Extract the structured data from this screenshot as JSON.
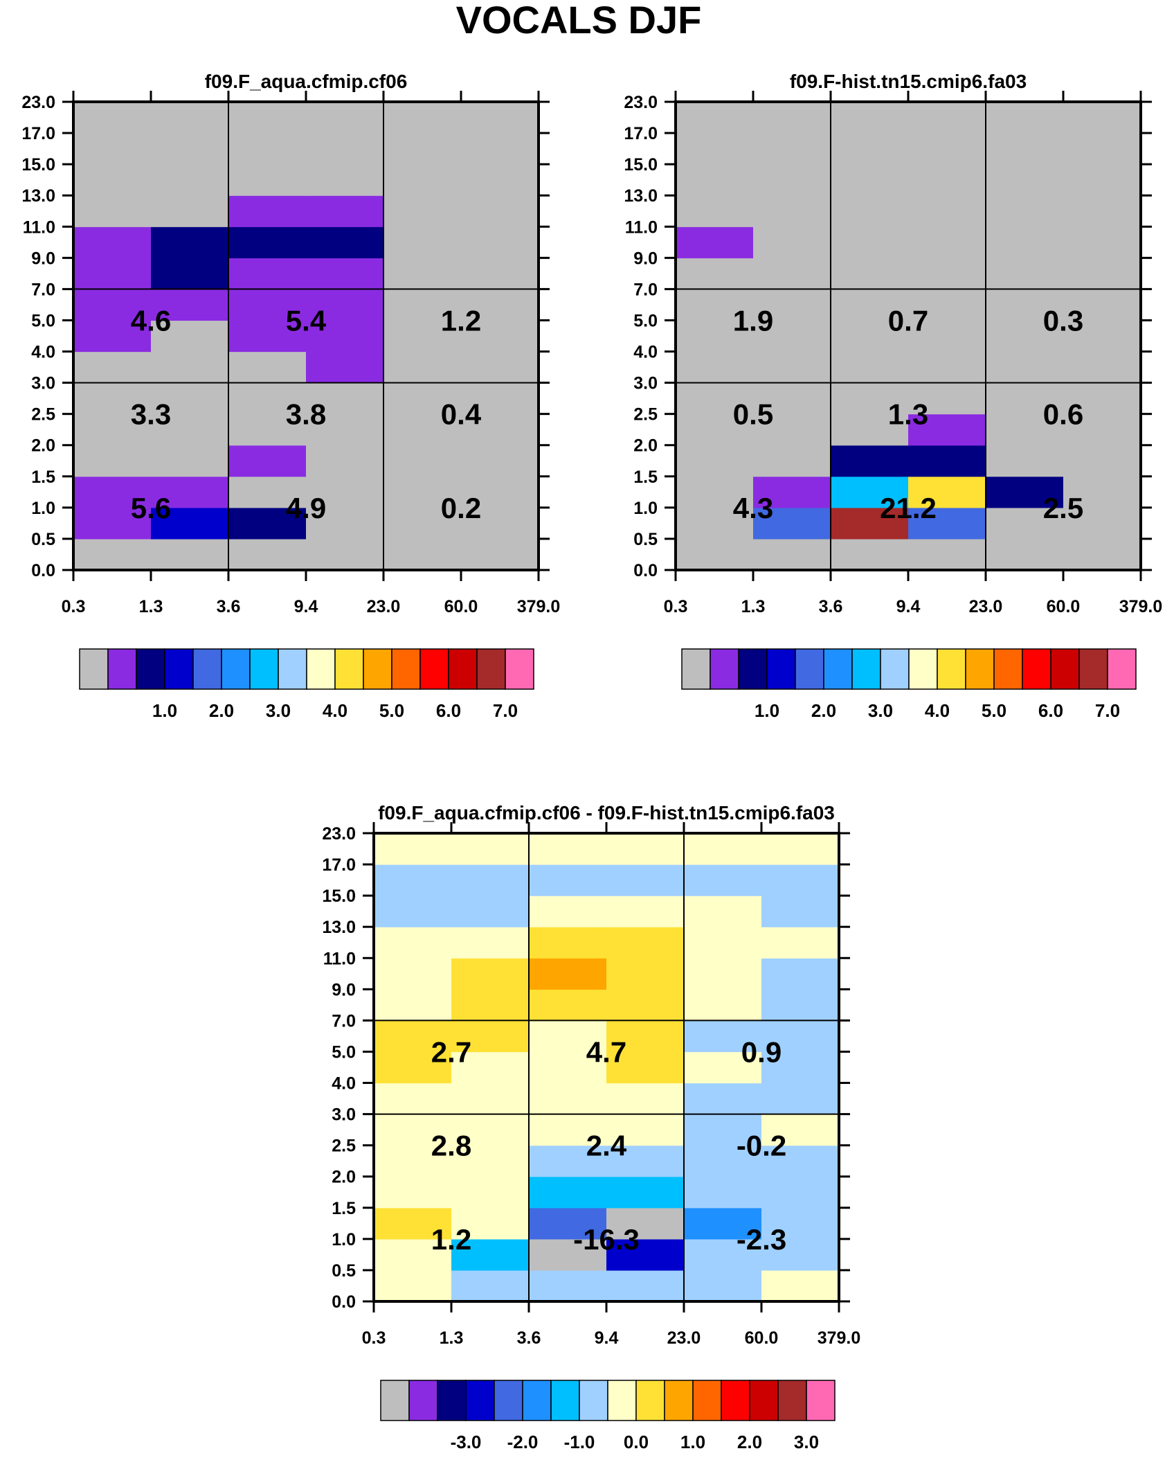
{
  "title": "VOCALS DJF",
  "colors": {
    "palette": [
      "#bebebe",
      "#8a2be2",
      "#000080",
      "#0000cd",
      "#4169e1",
      "#1e90ff",
      "#00bfff",
      "#a0d0ff",
      "#ffffc8",
      "#ffe135",
      "#ffa500",
      "#ff6600",
      "#ff0000",
      "#cc0000",
      "#a52a2a",
      "#ff69b4"
    ],
    "grid": "#000000"
  },
  "chart_data": [
    {
      "type": "heatmap",
      "title": "f09.F_aqua.cfmip.cf06",
      "x_ticks": [
        "0.3",
        "1.3",
        "3.6",
        "9.4",
        "23.0",
        "60.0",
        "379.0"
      ],
      "y_ticks": [
        "0.0",
        "0.5",
        "1.0",
        "1.5",
        "2.0",
        "2.5",
        "3.0",
        "4.0",
        "5.0",
        "7.0",
        "9.0",
        "11.0",
        "13.0",
        "15.0",
        "17.0",
        "23.0"
      ],
      "cells": [
        [
          0,
          0,
          0,
          0,
          0,
          0
        ],
        [
          1,
          3,
          2,
          0,
          0,
          0
        ],
        [
          1,
          1,
          0,
          0,
          0,
          0
        ],
        [
          0,
          0,
          1,
          0,
          0,
          0
        ],
        [
          0,
          0,
          0,
          0,
          0,
          0
        ],
        [
          0,
          0,
          0,
          0,
          0,
          0
        ],
        [
          0,
          0,
          0,
          1,
          0,
          0
        ],
        [
          1,
          0,
          1,
          1,
          0,
          0
        ],
        [
          1,
          1,
          1,
          1,
          0,
          0
        ],
        [
          1,
          2,
          1,
          1,
          0,
          0
        ],
        [
          1,
          2,
          2,
          2,
          0,
          0
        ],
        [
          0,
          0,
          1,
          1,
          0,
          0
        ],
        [
          0,
          0,
          0,
          0,
          0,
          0
        ],
        [
          0,
          0,
          0,
          0,
          0,
          0
        ],
        [
          0,
          0,
          0,
          0,
          0,
          0
        ]
      ],
      "box_values": [
        [
          "5.6",
          "4.9",
          "0.2"
        ],
        [
          "3.3",
          "3.8",
          "0.4"
        ],
        [
          "4.6",
          "5.4",
          "1.2"
        ]
      ],
      "colorbar": {
        "labels": [
          "1.0",
          "2.0",
          "3.0",
          "4.0",
          "5.0",
          "6.0",
          "7.0"
        ]
      }
    },
    {
      "type": "heatmap",
      "title": "f09.F-hist.tn15.cmip6.fa03",
      "x_ticks": [
        "0.3",
        "1.3",
        "3.6",
        "9.4",
        "23.0",
        "60.0",
        "379.0"
      ],
      "y_ticks": [
        "0.0",
        "0.5",
        "1.0",
        "1.5",
        "2.0",
        "2.5",
        "3.0",
        "4.0",
        "5.0",
        "7.0",
        "9.0",
        "11.0",
        "13.0",
        "15.0",
        "17.0",
        "23.0"
      ],
      "cells": [
        [
          0,
          0,
          0,
          0,
          0,
          0
        ],
        [
          0,
          4,
          14,
          4,
          0,
          0
        ],
        [
          0,
          1,
          6,
          9,
          2,
          0
        ],
        [
          0,
          0,
          2,
          2,
          0,
          0
        ],
        [
          0,
          0,
          0,
          1,
          0,
          0
        ],
        [
          0,
          0,
          0,
          0,
          0,
          0
        ],
        [
          0,
          0,
          0,
          0,
          0,
          0
        ],
        [
          0,
          0,
          0,
          0,
          0,
          0
        ],
        [
          0,
          0,
          0,
          0,
          0,
          0
        ],
        [
          0,
          0,
          0,
          0,
          0,
          0
        ],
        [
          1,
          0,
          0,
          0,
          0,
          0
        ],
        [
          0,
          0,
          0,
          0,
          0,
          0
        ],
        [
          0,
          0,
          0,
          0,
          0,
          0
        ],
        [
          0,
          0,
          0,
          0,
          0,
          0
        ],
        [
          0,
          0,
          0,
          0,
          0,
          0
        ]
      ],
      "box_values": [
        [
          "4.3",
          "21.2",
          "2.5"
        ],
        [
          "0.5",
          "1.3",
          "0.6"
        ],
        [
          "1.9",
          "0.7",
          "0.3"
        ]
      ],
      "colorbar": {
        "labels": [
          "1.0",
          "2.0",
          "3.0",
          "4.0",
          "5.0",
          "6.0",
          "7.0"
        ]
      }
    },
    {
      "type": "heatmap",
      "title": "f09.F_aqua.cfmip.cf06 - f09.F-hist.tn15.cmip6.fa03",
      "x_ticks": [
        "0.3",
        "1.3",
        "3.6",
        "9.4",
        "23.0",
        "60.0",
        "379.0"
      ],
      "y_ticks": [
        "0.0",
        "0.5",
        "1.0",
        "1.5",
        "2.0",
        "2.5",
        "3.0",
        "4.0",
        "5.0",
        "7.0",
        "9.0",
        "11.0",
        "13.0",
        "15.0",
        "17.0",
        "23.0"
      ],
      "cells": [
        [
          8,
          7,
          7,
          7,
          7,
          8
        ],
        [
          8,
          6,
          0,
          3,
          7,
          7
        ],
        [
          9,
          8,
          4,
          0,
          5,
          7
        ],
        [
          8,
          8,
          6,
          6,
          7,
          7
        ],
        [
          8,
          8,
          7,
          7,
          7,
          7
        ],
        [
          8,
          8,
          8,
          8,
          7,
          8
        ],
        [
          8,
          8,
          8,
          8,
          7,
          7
        ],
        [
          9,
          8,
          8,
          9,
          8,
          7
        ],
        [
          9,
          9,
          8,
          9,
          7,
          7
        ],
        [
          8,
          9,
          9,
          9,
          8,
          7
        ],
        [
          8,
          9,
          10,
          9,
          8,
          7
        ],
        [
          8,
          8,
          9,
          9,
          8,
          8
        ],
        [
          7,
          7,
          8,
          8,
          8,
          7
        ],
        [
          7,
          7,
          7,
          7,
          7,
          7
        ],
        [
          8,
          8,
          8,
          8,
          8,
          8
        ]
      ],
      "box_values": [
        [
          "1.2",
          "-16.3",
          "-2.3"
        ],
        [
          "2.8",
          "2.4",
          "-0.2"
        ],
        [
          "2.7",
          "4.7",
          "0.9"
        ]
      ],
      "colorbar": {
        "labels": [
          "-3.0",
          "-2.0",
          "-1.0",
          "0.0",
          "1.0",
          "2.0",
          "3.0"
        ]
      }
    }
  ]
}
